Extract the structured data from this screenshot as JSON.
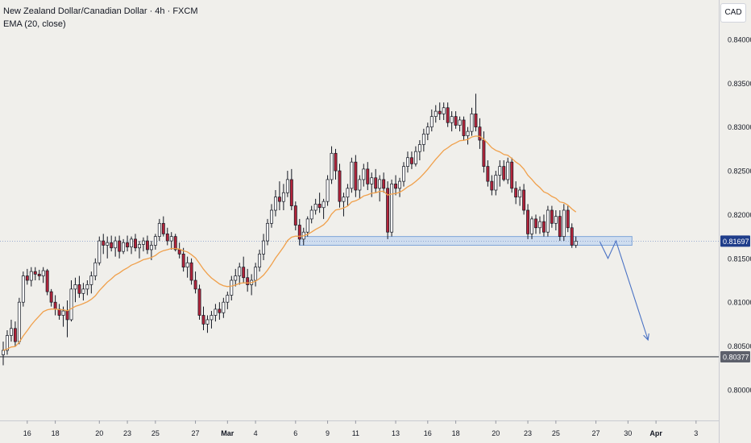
{
  "header": {
    "symbol_title": "New Zealand Dollar/Canadian Dollar · 4h · FXCM",
    "indicator_label": "EMA (20, close)",
    "currency_button": "CAD"
  },
  "colors": {
    "background": "#f0efeb",
    "bull": "#ffffff",
    "bear": "#b2243a",
    "wick": "#131722",
    "ema": "#f0a04b",
    "support_zone_fill": "#c9d9f0",
    "support_zone_stroke": "#7fa5d9",
    "projection_arrow": "#4a72c4",
    "horizontal_line": "#5d606b",
    "price_tag_current": "#1f3d8a"
  },
  "chart_data": {
    "type": "candlestick",
    "title": "New Zealand Dollar/Canadian Dollar · 4h · FXCM",
    "y_axis": {
      "unit": "CAD",
      "ticks": [
        "0.80000",
        "0.80500",
        "0.81000",
        "0.81500",
        "0.82000",
        "0.82500",
        "0.83000",
        "0.83500",
        "0.84000"
      ],
      "ylim": [
        0.7965,
        0.8445
      ]
    },
    "x_axis": {
      "ticks": [
        {
          "label": "16",
          "bar": 6
        },
        {
          "label": "18",
          "bar": 13
        },
        {
          "label": "20",
          "bar": 24
        },
        {
          "label": "23",
          "bar": 31
        },
        {
          "label": "25",
          "bar": 38
        },
        {
          "label": "27",
          "bar": 48
        },
        {
          "label": "Mar",
          "bar": 56,
          "bold": true
        },
        {
          "label": "4",
          "bar": 63
        },
        {
          "label": "6",
          "bar": 73
        },
        {
          "label": "9",
          "bar": 81
        },
        {
          "label": "11",
          "bar": 88
        },
        {
          "label": "13",
          "bar": 98
        },
        {
          "label": "16",
          "bar": 106
        },
        {
          "label": "18",
          "bar": 113
        },
        {
          "label": "20",
          "bar": 123
        },
        {
          "label": "23",
          "bar": 131
        },
        {
          "label": "25",
          "bar": 138
        },
        {
          "label": "27",
          "bar": 148
        },
        {
          "label": "30",
          "bar": 156
        },
        {
          "label": "Apr",
          "bar": 163,
          "bold": true
        },
        {
          "label": "3",
          "bar": 173
        }
      ]
    },
    "ohlc": [
      [
        0.804,
        0.8055,
        0.8028,
        0.8045
      ],
      [
        0.8045,
        0.8068,
        0.804,
        0.8062
      ],
      [
        0.8062,
        0.808,
        0.8055,
        0.807
      ],
      [
        0.807,
        0.8078,
        0.805,
        0.8055
      ],
      [
        0.8055,
        0.8105,
        0.8052,
        0.81
      ],
      [
        0.81,
        0.8135,
        0.8095,
        0.813
      ],
      [
        0.813,
        0.8138,
        0.812,
        0.8125
      ],
      [
        0.8125,
        0.814,
        0.8118,
        0.8135
      ],
      [
        0.8135,
        0.814,
        0.8125,
        0.8132
      ],
      [
        0.8132,
        0.8137,
        0.8125,
        0.813
      ],
      [
        0.813,
        0.814,
        0.8122,
        0.8136
      ],
      [
        0.8136,
        0.8138,
        0.8108,
        0.8112
      ],
      [
        0.8112,
        0.8115,
        0.8095,
        0.81
      ],
      [
        0.81,
        0.8108,
        0.8085,
        0.8092
      ],
      [
        0.8092,
        0.8098,
        0.808,
        0.8085
      ],
      [
        0.8085,
        0.8095,
        0.8072,
        0.809
      ],
      [
        0.809,
        0.8102,
        0.806,
        0.808
      ],
      [
        0.808,
        0.8125,
        0.8078,
        0.8115
      ],
      [
        0.8115,
        0.8128,
        0.81,
        0.812
      ],
      [
        0.812,
        0.813,
        0.8105,
        0.811
      ],
      [
        0.811,
        0.8122,
        0.8102,
        0.8115
      ],
      [
        0.8115,
        0.8125,
        0.8108,
        0.812
      ],
      [
        0.812,
        0.8135,
        0.811,
        0.813
      ],
      [
        0.813,
        0.815,
        0.8125,
        0.8145
      ],
      [
        0.8145,
        0.8175,
        0.8142,
        0.817
      ],
      [
        0.817,
        0.8178,
        0.8155,
        0.8165
      ],
      [
        0.8165,
        0.8175,
        0.815,
        0.8168
      ],
      [
        0.8168,
        0.8176,
        0.8158,
        0.8162
      ],
      [
        0.8162,
        0.8175,
        0.8152,
        0.817
      ],
      [
        0.817,
        0.8176,
        0.815,
        0.8158
      ],
      [
        0.8158,
        0.8172,
        0.8155,
        0.8168
      ],
      [
        0.8168,
        0.8176,
        0.8158,
        0.8163
      ],
      [
        0.8163,
        0.8175,
        0.8155,
        0.8172
      ],
      [
        0.8172,
        0.8178,
        0.8158,
        0.8162
      ],
      [
        0.8162,
        0.817,
        0.815,
        0.8166
      ],
      [
        0.8166,
        0.8174,
        0.8158,
        0.817
      ],
      [
        0.817,
        0.8176,
        0.8155,
        0.816
      ],
      [
        0.816,
        0.817,
        0.8148,
        0.8165
      ],
      [
        0.8165,
        0.8178,
        0.816,
        0.8175
      ],
      [
        0.8175,
        0.8195,
        0.817,
        0.819
      ],
      [
        0.819,
        0.8198,
        0.8175,
        0.8178
      ],
      [
        0.8178,
        0.8185,
        0.8165,
        0.817
      ],
      [
        0.817,
        0.818,
        0.816,
        0.8175
      ],
      [
        0.8175,
        0.8178,
        0.8158,
        0.816
      ],
      [
        0.816,
        0.8168,
        0.815,
        0.8155
      ],
      [
        0.8155,
        0.8162,
        0.8135,
        0.814
      ],
      [
        0.814,
        0.8152,
        0.8128,
        0.8145
      ],
      [
        0.8145,
        0.815,
        0.812,
        0.8125
      ],
      [
        0.8125,
        0.8135,
        0.811,
        0.8115
      ],
      [
        0.8115,
        0.812,
        0.808,
        0.8085
      ],
      [
        0.8085,
        0.8095,
        0.8068,
        0.8075
      ],
      [
        0.8075,
        0.8085,
        0.8065,
        0.808
      ],
      [
        0.808,
        0.809,
        0.807,
        0.8085
      ],
      [
        0.8085,
        0.8098,
        0.8078,
        0.8092
      ],
      [
        0.8092,
        0.81,
        0.808,
        0.8088
      ],
      [
        0.8088,
        0.8105,
        0.8082,
        0.81
      ],
      [
        0.81,
        0.8112,
        0.8092,
        0.8108
      ],
      [
        0.8108,
        0.813,
        0.8102,
        0.8125
      ],
      [
        0.8125,
        0.8138,
        0.8118,
        0.813
      ],
      [
        0.813,
        0.8145,
        0.812,
        0.814
      ],
      [
        0.814,
        0.8152,
        0.8122,
        0.8128
      ],
      [
        0.8128,
        0.8138,
        0.8112,
        0.812
      ],
      [
        0.812,
        0.8132,
        0.8108,
        0.8125
      ],
      [
        0.8125,
        0.8145,
        0.8118,
        0.814
      ],
      [
        0.814,
        0.816,
        0.8135,
        0.8155
      ],
      [
        0.8155,
        0.8178,
        0.8148,
        0.817
      ],
      [
        0.817,
        0.8195,
        0.8165,
        0.819
      ],
      [
        0.819,
        0.8212,
        0.8185,
        0.8205
      ],
      [
        0.8205,
        0.8228,
        0.8198,
        0.822
      ],
      [
        0.822,
        0.8238,
        0.8205,
        0.8215
      ],
      [
        0.8215,
        0.8235,
        0.8205,
        0.8225
      ],
      [
        0.8225,
        0.825,
        0.822,
        0.824
      ],
      [
        0.824,
        0.8252,
        0.8205,
        0.821
      ],
      [
        0.821,
        0.8215,
        0.8182,
        0.8188
      ],
      [
        0.8188,
        0.8195,
        0.8165,
        0.8172
      ],
      [
        0.8172,
        0.8185,
        0.8165,
        0.818
      ],
      [
        0.818,
        0.8198,
        0.8175,
        0.8195
      ],
      [
        0.8195,
        0.821,
        0.819,
        0.8205
      ],
      [
        0.8205,
        0.8218,
        0.82,
        0.8212
      ],
      [
        0.8212,
        0.8225,
        0.8202,
        0.8208
      ],
      [
        0.8208,
        0.8218,
        0.8195,
        0.8215
      ],
      [
        0.8215,
        0.8245,
        0.821,
        0.824
      ],
      [
        0.824,
        0.8278,
        0.8235,
        0.827
      ],
      [
        0.827,
        0.8275,
        0.824,
        0.825
      ],
      [
        0.825,
        0.8258,
        0.8208,
        0.8215
      ],
      [
        0.8215,
        0.8225,
        0.8198,
        0.822
      ],
      [
        0.822,
        0.8235,
        0.821,
        0.823
      ],
      [
        0.823,
        0.8265,
        0.8225,
        0.826
      ],
      [
        0.826,
        0.8268,
        0.822,
        0.8228
      ],
      [
        0.8228,
        0.8245,
        0.8218,
        0.824
      ],
      [
        0.824,
        0.8258,
        0.8232,
        0.8252
      ],
      [
        0.8252,
        0.826,
        0.8228,
        0.8235
      ],
      [
        0.8235,
        0.8248,
        0.822,
        0.8242
      ],
      [
        0.8242,
        0.8252,
        0.8225,
        0.823
      ],
      [
        0.823,
        0.8245,
        0.8215,
        0.824
      ],
      [
        0.824,
        0.8248,
        0.8225,
        0.823
      ],
      [
        0.823,
        0.8238,
        0.8172,
        0.818
      ],
      [
        0.818,
        0.824,
        0.8175,
        0.8235
      ],
      [
        0.8235,
        0.8245,
        0.8222,
        0.823
      ],
      [
        0.823,
        0.8242,
        0.822,
        0.8238
      ],
      [
        0.8238,
        0.826,
        0.8232,
        0.8255
      ],
      [
        0.8255,
        0.8272,
        0.8248,
        0.8265
      ],
      [
        0.8265,
        0.8272,
        0.8252,
        0.8258
      ],
      [
        0.8258,
        0.8278,
        0.8255,
        0.8272
      ],
      [
        0.8272,
        0.8285,
        0.8262,
        0.828
      ],
      [
        0.828,
        0.8298,
        0.8272,
        0.8292
      ],
      [
        0.8292,
        0.8305,
        0.8285,
        0.83
      ],
      [
        0.83,
        0.832,
        0.8295,
        0.8312
      ],
      [
        0.8312,
        0.8325,
        0.8305,
        0.8318
      ],
      [
        0.8318,
        0.8328,
        0.8308,
        0.8315
      ],
      [
        0.8315,
        0.8328,
        0.8308,
        0.8322
      ],
      [
        0.8322,
        0.8328,
        0.83,
        0.8305
      ],
      [
        0.8305,
        0.8318,
        0.8295,
        0.8312
      ],
      [
        0.8312,
        0.8318,
        0.8298,
        0.8302
      ],
      [
        0.8302,
        0.8312,
        0.8295,
        0.8308
      ],
      [
        0.8308,
        0.8312,
        0.8285,
        0.829
      ],
      [
        0.829,
        0.83,
        0.828,
        0.8295
      ],
      [
        0.8295,
        0.8322,
        0.829,
        0.8315
      ],
      [
        0.8315,
        0.8338,
        0.8295,
        0.83
      ],
      [
        0.83,
        0.831,
        0.8275,
        0.8285
      ],
      [
        0.8285,
        0.8295,
        0.8248,
        0.8255
      ],
      [
        0.8255,
        0.8262,
        0.8232,
        0.8238
      ],
      [
        0.8238,
        0.8245,
        0.8222,
        0.8228
      ],
      [
        0.8228,
        0.825,
        0.8222,
        0.8245
      ],
      [
        0.8245,
        0.8262,
        0.8232,
        0.8255
      ],
      [
        0.8255,
        0.8262,
        0.8238,
        0.824
      ],
      [
        0.824,
        0.8265,
        0.8235,
        0.826
      ],
      [
        0.826,
        0.8265,
        0.8225,
        0.823
      ],
      [
        0.823,
        0.8238,
        0.8212,
        0.822
      ],
      [
        0.822,
        0.8232,
        0.821,
        0.8228
      ],
      [
        0.8228,
        0.8235,
        0.82,
        0.8205
      ],
      [
        0.8205,
        0.8212,
        0.8172,
        0.8178
      ],
      [
        0.8178,
        0.8198,
        0.8172,
        0.8195
      ],
      [
        0.8195,
        0.82,
        0.8178,
        0.8185
      ],
      [
        0.8185,
        0.8198,
        0.8178,
        0.8192
      ],
      [
        0.8192,
        0.82,
        0.8175,
        0.818
      ],
      [
        0.818,
        0.821,
        0.8175,
        0.8205
      ],
      [
        0.8205,
        0.821,
        0.8185,
        0.819
      ],
      [
        0.819,
        0.8205,
        0.8182,
        0.8198
      ],
      [
        0.8198,
        0.8205,
        0.817,
        0.8175
      ],
      [
        0.8175,
        0.8212,
        0.817,
        0.8205
      ],
      [
        0.8205,
        0.821,
        0.818,
        0.8185
      ],
      [
        0.8185,
        0.819,
        0.8162,
        0.8165
      ],
      [
        0.8165,
        0.8175,
        0.8162,
        0.81697
      ]
    ],
    "ema_period": 20,
    "support_zone": {
      "low": 0.8165,
      "high": 0.8175
    },
    "horizontal_level": 0.80377,
    "price_labels": {
      "current": "0.81697",
      "level": "0.80377"
    },
    "projection_path": [
      [
        149,
        0.8169
      ],
      [
        151,
        0.815
      ],
      [
        153,
        0.817
      ],
      [
        161,
        0.8057
      ]
    ]
  }
}
